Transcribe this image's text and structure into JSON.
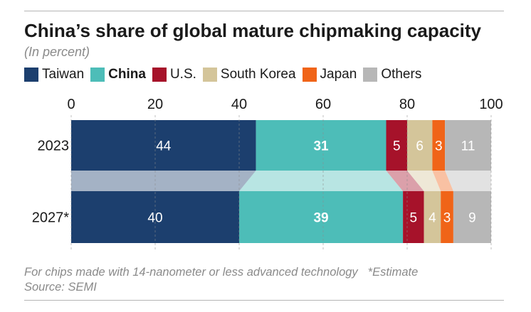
{
  "chart_data": {
    "type": "bar",
    "orientation": "horizontal",
    "stacked": true,
    "title": "China’s share of global mature chipmaking capacity",
    "subtitle": "(In percent)",
    "categories": [
      "2023",
      "2027*"
    ],
    "xlim": [
      0,
      100
    ],
    "xticks": [
      "0",
      "20",
      "40",
      "60",
      "80",
      "100"
    ],
    "series": [
      {
        "name": "Taiwan",
        "color": "#1c3f6e",
        "values": [
          44,
          40
        ],
        "labels": [
          "44",
          "40"
        ],
        "bold": false
      },
      {
        "name": "China",
        "color": "#4dbdb8",
        "values": [
          31,
          39
        ],
        "labels": [
          "31",
          "39"
        ],
        "bold": true
      },
      {
        "name": "U.S.",
        "color": "#a6122a",
        "values": [
          5,
          5
        ],
        "labels": [
          "5",
          "5"
        ],
        "bold": false
      },
      {
        "name": "South Korea",
        "color": "#d4c59a",
        "values": [
          6,
          4
        ],
        "labels": [
          "6",
          "4"
        ],
        "bold": false
      },
      {
        "name": "Japan",
        "color": "#f06418",
        "values": [
          3,
          3
        ],
        "labels": [
          "3",
          "3"
        ],
        "bold": false
      },
      {
        "name": "Others",
        "color": "#b7b7b7",
        "values": [
          11,
          9
        ],
        "labels": [
          "11",
          "9"
        ],
        "bold": false
      }
    ]
  },
  "footnote": {
    "text": "For chips made with 14-nanometer or less advanced technology",
    "estimate": "*Estimate",
    "source": "Source: SEMI"
  }
}
